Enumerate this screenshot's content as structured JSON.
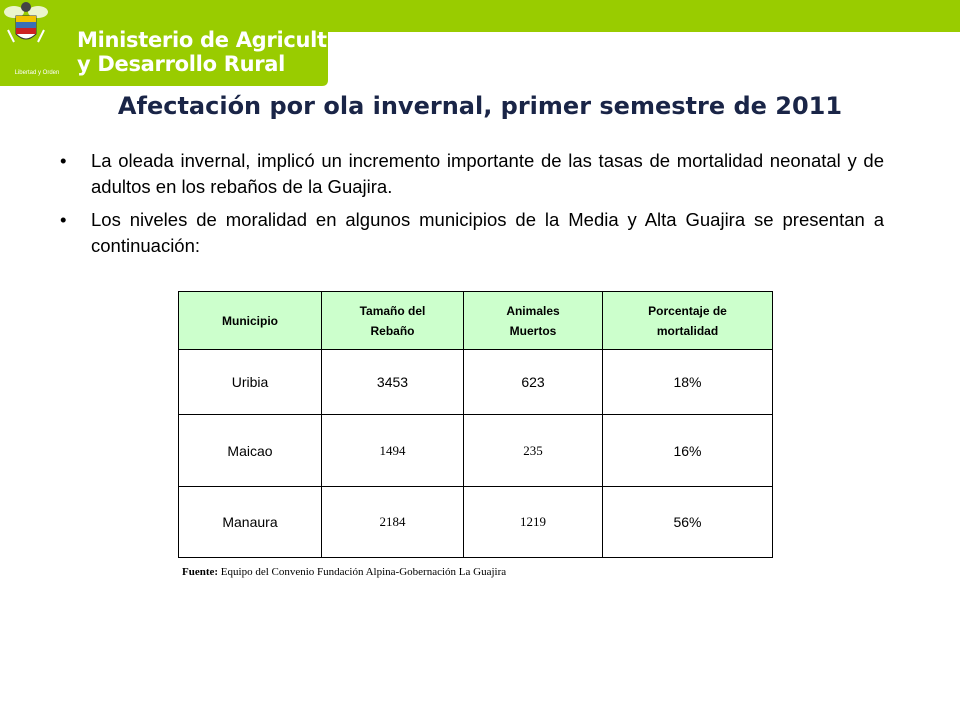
{
  "header": {
    "brand_line1": "Ministerio de Agricultura",
    "brand_line2": "y Desarrollo Rural",
    "crest_motto": "Libertad y Orden",
    "colors": {
      "green": "#99cc00",
      "title": "#1a2547",
      "table_header": "#ccffcc"
    }
  },
  "slide": {
    "title": "Afectación por ola invernal, primer semestre de 2011",
    "bullets": [
      {
        "mark": "•",
        "text": "La oleada invernal, implicó un incremento importante de las tasas de mortalidad neonatal y de adultos en los rebaños de la Guajira."
      },
      {
        "mark": "•",
        "text": "Los niveles de moralidad en algunos municipios de la Media y Alta Guajira se presentan a continuación:"
      }
    ]
  },
  "table": {
    "headers": [
      {
        "l1": "Municipio",
        "l2": ""
      },
      {
        "l1": "Tamaño del",
        "l2": "Rebaño"
      },
      {
        "l1": "Animales",
        "l2": "Muertos"
      },
      {
        "l1": "Porcentaje de",
        "l2": "mortalidad"
      }
    ],
    "rows": [
      [
        "Uribia",
        "3453",
        "623",
        "18%"
      ],
      [
        "Maicao",
        "1494",
        "235",
        "16%"
      ],
      [
        "Manaura",
        "2184",
        "1219",
        "56%"
      ]
    ],
    "source_label": "Fuente:",
    "source_text": "Equipo del Convenio Fundación Alpina-Gobernación La Guajira"
  }
}
